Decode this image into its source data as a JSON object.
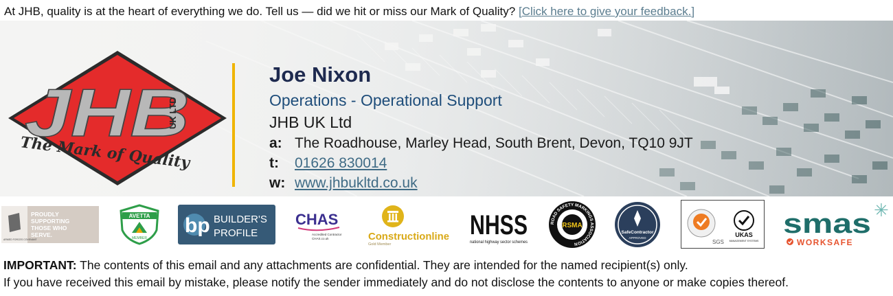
{
  "header": {
    "intro": "At JHB, quality is at the heart of everything we do.  Tell us — did we hit or miss our Mark of Quality?",
    "feedback_link": "[Click here to give your feedback.]"
  },
  "logo": {
    "letters": "JHB",
    "suffix": "UK LTD",
    "tagline": "The Mark of Quality",
    "colors": {
      "red": "#e42b2b",
      "grey": "#b8b8b8",
      "divider": "#f0b400"
    }
  },
  "contact": {
    "name": "Joe Nixon",
    "role": "Operations - Operational Support",
    "company": "JHB UK Ltd",
    "address_label": "a:",
    "address": "The Roadhouse, Marley Head, South Brent, Devon, TQ10 9JT",
    "phone_label": "t:",
    "phone": "01626 830014",
    "web_label": "w:",
    "web": "www.jhbukltd.co.uk"
  },
  "badges": {
    "armed_forces": {
      "lines": [
        "PROUDLY",
        "SUPPORTING",
        "THOSE WHO",
        "SERVE."
      ],
      "sub": "ARMED FORCES COVENANT"
    },
    "avetta": {
      "name": "AVETTA",
      "sub": "MEMBER"
    },
    "builders_profile": {
      "mark": "bp",
      "line1": "BUILDER'S",
      "line2": "PROFILE"
    },
    "chas": {
      "name": "CHAS",
      "sub1": "Accredited Contractor",
      "sub2": "CHAS.co.uk"
    },
    "constructionline": {
      "name": "Constructionline",
      "sub": "Gold Member"
    },
    "nhss": {
      "name": "NHSS",
      "sub": "national highway sector schemes"
    },
    "rsma": {
      "ring": "ROAD SAFETY MARKINGS ASSOCIATION",
      "letters": "RSMA"
    },
    "safecontractor": {
      "name": "SafeContractor",
      "sub": "APPROVED"
    },
    "sgs_ukas": {
      "sgs": "SGS",
      "ukas": "UKAS",
      "ukas_sub": "MANAGEMENT SYSTEMS"
    },
    "smas": {
      "name": "smas",
      "sub": "WORKSAFE"
    }
  },
  "footer": {
    "important_label": "IMPORTANT:",
    "line1": "The contents of this email and any attachments are confidential. They are intended for the named recipient(s) only.",
    "line2": "If you have received this email by mistake, please notify the sender immediately and do not disclose the contents to anyone or make copies thereof."
  }
}
